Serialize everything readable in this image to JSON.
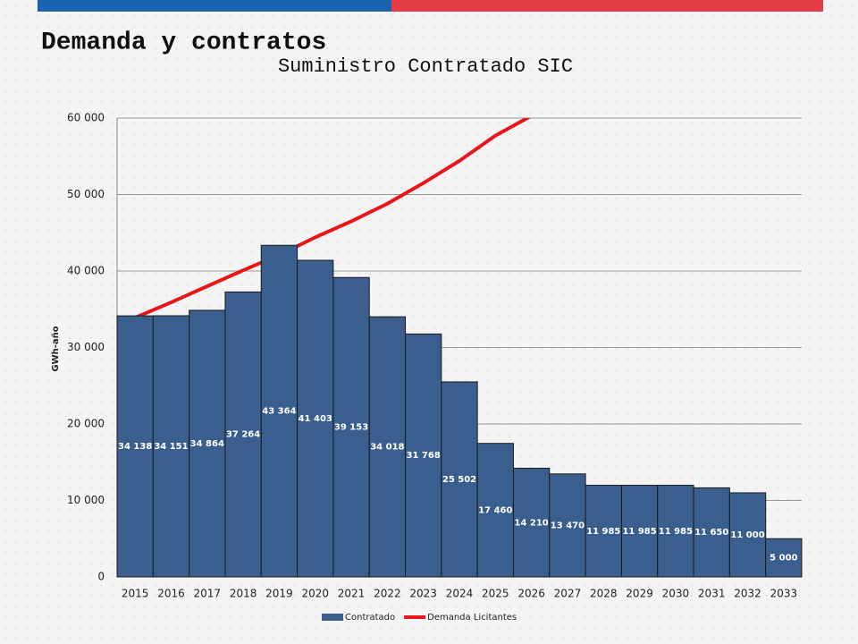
{
  "page_title": "Demanda y contratos",
  "chart_data": {
    "type": "bar",
    "title": "Suministro Contratado SIC",
    "y_label": "GWh-año",
    "categories": [
      "2015",
      "2016",
      "2017",
      "2018",
      "2019",
      "2020",
      "2021",
      "2022",
      "2023",
      "2024",
      "2025",
      "2026",
      "2027",
      "2028",
      "2029",
      "2030",
      "2031",
      "2032",
      "2033"
    ],
    "series": [
      {
        "name": "Contratado",
        "type": "bar",
        "color": "#3a5f8f",
        "values": [
          34138,
          34151,
          34864,
          37264,
          43364,
          41403,
          39153,
          34018,
          31768,
          25502,
          17460,
          14210,
          13470,
          11985,
          11985,
          11985,
          11650,
          11000,
          5000
        ],
        "value_labels": [
          "34 138",
          "34 151",
          "34 864",
          "37 264",
          "43 364",
          "41 403",
          "39 153",
          "34 018",
          "31 768",
          "25 502",
          "17 460",
          "14 210",
          "13 470",
          "11 985",
          "11 985",
          "11 985",
          "11 650",
          "11 000",
          "5 000"
        ]
      },
      {
        "name": "Demanda Licitantes",
        "type": "line",
        "color": "#e8161b",
        "values": [
          33900,
          35900,
          38000,
          40100,
          42100,
          44400,
          46500,
          48800,
          51500,
          54400,
          57700,
          60300,
          null,
          null,
          null,
          null,
          null,
          null,
          null
        ]
      }
    ],
    "ylim": [
      0,
      60000
    ],
    "yticks": [
      0,
      {
        "value": 10000,
        "label": "10 000"
      },
      {
        "value": 20000,
        "label": "20 000"
      },
      {
        "value": 30000,
        "label": "30 000"
      },
      {
        "value": 40000,
        "label": "40 000"
      },
      {
        "value": 50000,
        "label": "50 000"
      },
      {
        "value": 60000,
        "label": "60 000"
      }
    ],
    "grid": true,
    "legend": "bottom"
  }
}
